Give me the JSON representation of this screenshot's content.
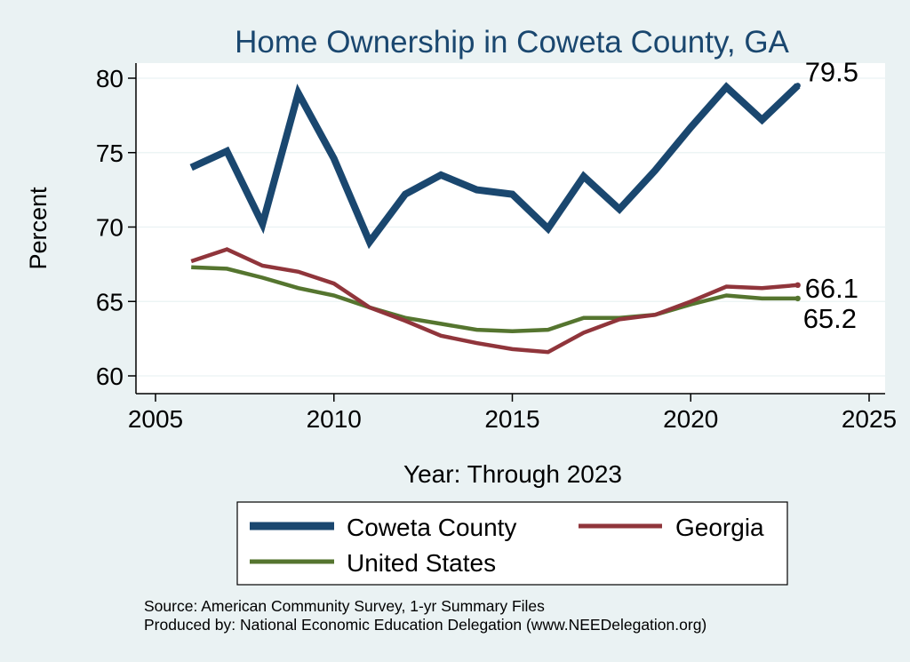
{
  "colors": {
    "background": "#eaf2f3",
    "plot_background": "#ffffff",
    "grid": "#eaf2f3",
    "title": "#1a476f",
    "text": "#000000"
  },
  "chart_data": {
    "type": "line",
    "title": "Home Ownership in Coweta County, GA",
    "xlabel": "Year: Through 2023",
    "ylabel": "Percent",
    "xlim": [
      2005,
      2025
    ],
    "ylim": [
      60,
      80
    ],
    "xticks": [
      2005,
      2010,
      2015,
      2020,
      2025
    ],
    "yticks": [
      60,
      65,
      70,
      75,
      80
    ],
    "grid": true,
    "legend_position": "bottom",
    "x": [
      2006,
      2007,
      2008,
      2009,
      2010,
      2011,
      2012,
      2013,
      2014,
      2015,
      2016,
      2017,
      2018,
      2019,
      2020,
      2021,
      2022,
      2023
    ],
    "series": [
      {
        "name": "Coweta County",
        "color": "#1a476f",
        "width": "thick",
        "values": [
          74.0,
          75.1,
          70.2,
          79.0,
          74.6,
          69.0,
          72.2,
          73.5,
          72.5,
          72.2,
          69.9,
          73.4,
          71.2,
          73.8,
          76.7,
          79.4,
          77.2,
          79.5
        ],
        "end_label": "79.5"
      },
      {
        "name": "Georgia",
        "color": "#90353b",
        "width": "medium",
        "values": [
          67.7,
          68.5,
          67.4,
          67.0,
          66.2,
          64.6,
          63.7,
          62.7,
          62.2,
          61.8,
          61.6,
          62.9,
          63.8,
          64.1,
          65.0,
          66.0,
          65.9,
          66.1
        ],
        "end_label": "66.1"
      },
      {
        "name": "United States",
        "color": "#55752f",
        "width": "medium",
        "values": [
          67.3,
          67.2,
          66.6,
          65.9,
          65.4,
          64.6,
          63.9,
          63.5,
          63.1,
          63.0,
          63.1,
          63.9,
          63.9,
          64.1,
          64.8,
          65.4,
          65.2,
          65.2
        ],
        "end_label": "65.2"
      }
    ],
    "source": "Source: American Community Survey, 1-yr Summary Files",
    "produced_by": "Produced by: National Economic Education Delegation (www.NEEDelegation.org)"
  }
}
